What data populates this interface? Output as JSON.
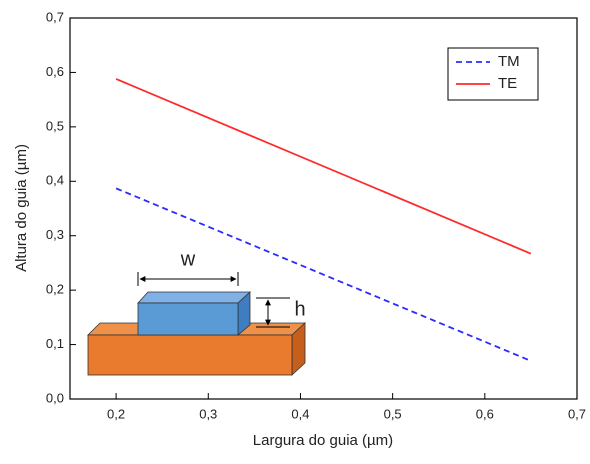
{
  "chart_data": {
    "type": "line",
    "x_label": "Largura do guia (µm)",
    "y_label": "Altura do guia (µm)",
    "x": [
      0.2,
      0.65
    ],
    "series": [
      {
        "name": "TM",
        "color": "#2b2bff",
        "dash": true,
        "values": [
          0.387,
          0.07
        ]
      },
      {
        "name": "TE",
        "color": "#ff2b2b",
        "dash": false,
        "values": [
          0.588,
          0.267
        ]
      }
    ],
    "xlim": [
      0.15,
      0.7
    ],
    "ylim": [
      0,
      0.7
    ],
    "xticks": [
      {
        "value": 0.2,
        "label": "0,2"
      },
      {
        "value": 0.3,
        "label": "0,3"
      },
      {
        "value": 0.4,
        "label": "0,4"
      },
      {
        "value": 0.5,
        "label": "0,5"
      },
      {
        "value": 0.6,
        "label": "0,6"
      },
      {
        "value": 0.7,
        "label": "0,7"
      }
    ],
    "yticks": [
      {
        "value": 0,
        "label": "0,0"
      },
      {
        "value": 0.1,
        "label": "0,1"
      },
      {
        "value": 0.2,
        "label": "0,2"
      },
      {
        "value": 0.3,
        "label": "0,3"
      },
      {
        "value": 0.4,
        "label": "0,4"
      },
      {
        "value": 0.5,
        "label": "0,5"
      },
      {
        "value": 0.6,
        "label": "0,6"
      },
      {
        "value": 0.7,
        "label": "0,7"
      }
    ],
    "legend_position": "upper right",
    "annotations": [
      "w",
      "h"
    ]
  }
}
